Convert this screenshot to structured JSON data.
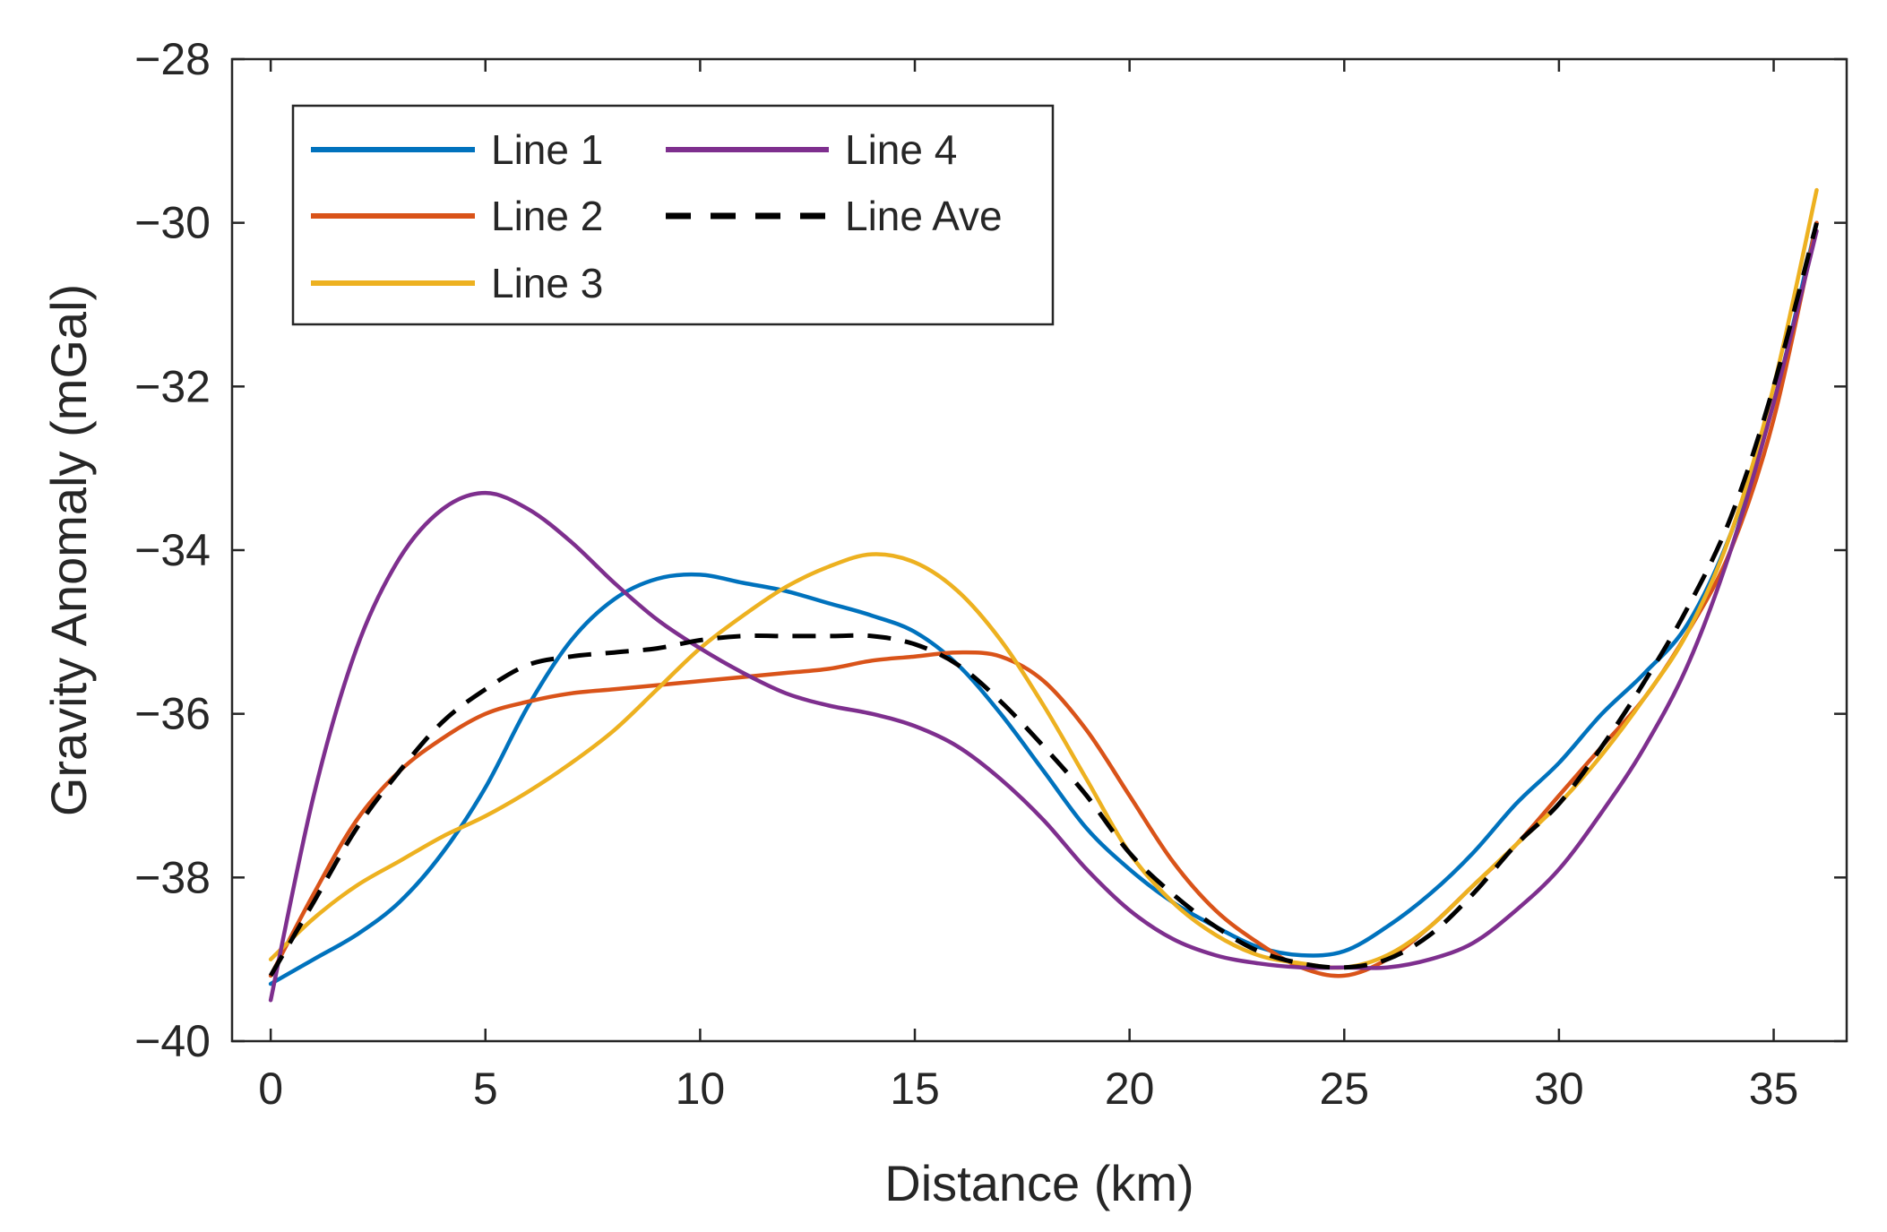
{
  "chart_data": {
    "type": "line",
    "title": "",
    "xlabel": "Distance (km)",
    "ylabel": "Gravity Anomaly (mGal)",
    "xlim": [
      -0.9,
      36.7
    ],
    "ylim": [
      -40,
      -28
    ],
    "xticks": [
      0,
      5,
      10,
      15,
      20,
      25,
      30,
      35
    ],
    "yticks": [
      -28,
      -30,
      -32,
      -34,
      -36,
      -38,
      -40
    ],
    "xtick_labels": [
      "0",
      "5",
      "10",
      "15",
      "20",
      "25",
      "30",
      "35"
    ],
    "ytick_labels": [
      "-28",
      "-30",
      "-32",
      "-34",
      "-36",
      "-38",
      "-40"
    ],
    "grid": false,
    "legend_position": "top-left",
    "series": [
      {
        "name": "Line 1",
        "color": "#0072BD",
        "dash": "solid",
        "x": [
          0,
          1,
          2,
          3,
          4,
          5,
          6,
          7,
          8,
          9,
          10,
          11,
          12,
          13,
          14,
          15,
          16,
          17,
          18,
          19,
          20,
          21,
          22,
          23,
          24,
          25,
          26,
          27,
          28,
          29,
          30,
          31,
          32,
          33,
          34,
          35,
          36
        ],
        "y": [
          -39.3,
          -39.0,
          -38.7,
          -38.3,
          -37.7,
          -36.9,
          -35.9,
          -35.1,
          -34.6,
          -34.35,
          -34.3,
          -34.4,
          -34.5,
          -34.65,
          -34.8,
          -35.0,
          -35.4,
          -36.0,
          -36.7,
          -37.4,
          -37.9,
          -38.3,
          -38.6,
          -38.85,
          -38.95,
          -38.9,
          -38.6,
          -38.2,
          -37.7,
          -37.1,
          -36.6,
          -36.0,
          -35.5,
          -34.9,
          -33.8,
          -32.2,
          -30.0
        ]
      },
      {
        "name": "Line 2",
        "color": "#D95319",
        "dash": "solid",
        "x": [
          0,
          1,
          2,
          3,
          4,
          5,
          6,
          7,
          8,
          9,
          10,
          11,
          12,
          13,
          14,
          15,
          16,
          17,
          18,
          19,
          20,
          21,
          22,
          23,
          24,
          25,
          26,
          27,
          28,
          29,
          30,
          31,
          32,
          33,
          34,
          35,
          36
        ],
        "y": [
          -39.2,
          -38.2,
          -37.3,
          -36.7,
          -36.3,
          -36.0,
          -35.85,
          -35.75,
          -35.7,
          -35.65,
          -35.6,
          -35.55,
          -35.5,
          -35.45,
          -35.35,
          -35.3,
          -35.25,
          -35.3,
          -35.6,
          -36.2,
          -37.0,
          -37.8,
          -38.4,
          -38.8,
          -39.1,
          -39.2,
          -39.0,
          -38.6,
          -38.1,
          -37.6,
          -37.0,
          -36.4,
          -35.8,
          -35.0,
          -34.0,
          -32.4,
          -30.0
        ]
      },
      {
        "name": "Line 3",
        "color": "#EDB120",
        "dash": "solid",
        "x": [
          0,
          1,
          2,
          3,
          4,
          5,
          6,
          7,
          8,
          9,
          10,
          11,
          12,
          13,
          14,
          15,
          16,
          17,
          18,
          19,
          20,
          21,
          22,
          23,
          24,
          25,
          26,
          27,
          28,
          29,
          30,
          31,
          32,
          33,
          34,
          35,
          36
        ],
        "y": [
          -39.0,
          -38.5,
          -38.1,
          -37.8,
          -37.5,
          -37.25,
          -36.95,
          -36.6,
          -36.2,
          -35.7,
          -35.2,
          -34.8,
          -34.45,
          -34.2,
          -34.05,
          -34.15,
          -34.5,
          -35.1,
          -35.9,
          -36.8,
          -37.7,
          -38.3,
          -38.7,
          -38.95,
          -39.05,
          -39.1,
          -38.95,
          -38.6,
          -38.1,
          -37.6,
          -37.1,
          -36.5,
          -35.8,
          -35.0,
          -33.8,
          -32.0,
          -29.6
        ]
      },
      {
        "name": "Line 4",
        "color": "#7E2F8E",
        "dash": "solid",
        "x": [
          0,
          1,
          2,
          3,
          4,
          5,
          6,
          7,
          8,
          9,
          10,
          11,
          12,
          13,
          14,
          15,
          16,
          17,
          18,
          19,
          20,
          21,
          22,
          23,
          24,
          25,
          26,
          27,
          28,
          29,
          30,
          31,
          32,
          33,
          34,
          35,
          36
        ],
        "y": [
          -39.5,
          -37.0,
          -35.2,
          -34.1,
          -33.5,
          -33.3,
          -33.5,
          -33.9,
          -34.4,
          -34.85,
          -35.2,
          -35.5,
          -35.75,
          -35.9,
          -36.0,
          -36.15,
          -36.4,
          -36.8,
          -37.3,
          -37.9,
          -38.4,
          -38.75,
          -38.95,
          -39.05,
          -39.1,
          -39.1,
          -39.1,
          -39.0,
          -38.8,
          -38.4,
          -37.9,
          -37.2,
          -36.4,
          -35.4,
          -34.0,
          -32.2,
          -30.1
        ]
      },
      {
        "name": "Line Ave",
        "color": "#000000",
        "dash": "dashed",
        "x": [
          0,
          1,
          2,
          3,
          4,
          5,
          6,
          7,
          8,
          9,
          10,
          11,
          12,
          13,
          14,
          15,
          16,
          17,
          18,
          19,
          20,
          21,
          22,
          23,
          24,
          25,
          26,
          27,
          28,
          29,
          30,
          31,
          32,
          33,
          34,
          35,
          36
        ],
        "y": [
          -39.2,
          -38.3,
          -37.4,
          -36.7,
          -36.1,
          -35.7,
          -35.4,
          -35.3,
          -35.25,
          -35.2,
          -35.1,
          -35.05,
          -35.05,
          -35.05,
          -35.05,
          -35.15,
          -35.4,
          -35.85,
          -36.4,
          -37.0,
          -37.7,
          -38.2,
          -38.6,
          -38.9,
          -39.05,
          -39.1,
          -39.0,
          -38.7,
          -38.2,
          -37.6,
          -37.1,
          -36.4,
          -35.6,
          -34.7,
          -33.6,
          -32.0,
          -30.0
        ]
      }
    ]
  }
}
